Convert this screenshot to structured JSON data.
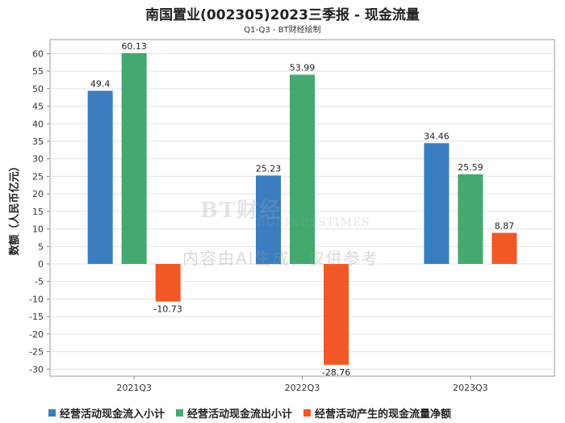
{
  "chart_data": {
    "type": "bar",
    "title": "南国置业(002305)2023三季报 - 现金流量",
    "subtitle": "Q1-Q3 - BT财经绘制",
    "ylabel": "数额（人民币亿元）",
    "xlabel": "",
    "categories": [
      "2021Q3",
      "2022Q3",
      "2023Q3"
    ],
    "ylim": [
      -32,
      64
    ],
    "yticks": [
      -30,
      -25,
      -20,
      -15,
      -10,
      -5,
      0,
      5,
      10,
      15,
      20,
      25,
      30,
      35,
      40,
      45,
      50,
      55,
      60
    ],
    "grid": true,
    "legend_position": "bottom",
    "series": [
      {
        "name": "经营活动现金流入小计",
        "color": "#3a7ebf",
        "values": [
          49.4,
          25.23,
          34.46
        ],
        "labels": [
          "49.4",
          "25.23",
          "34.46"
        ]
      },
      {
        "name": "经营活动现金流出小计",
        "color": "#44a96f",
        "values": [
          60.13,
          53.99,
          25.59
        ],
        "labels": [
          "60.13",
          "53.99",
          "25.59"
        ]
      },
      {
        "name": "经营活动产生的现金流量净额",
        "color": "#f25826",
        "values": [
          -10.73,
          -28.76,
          8.87
        ],
        "labels": [
          "-10.73",
          "-28.76",
          "8.87"
        ]
      }
    ]
  },
  "watermark": {
    "logo": "BT财经",
    "logo_sub": "BUSINESSTIMES",
    "text": "内容由AI生成，仅供参考"
  }
}
